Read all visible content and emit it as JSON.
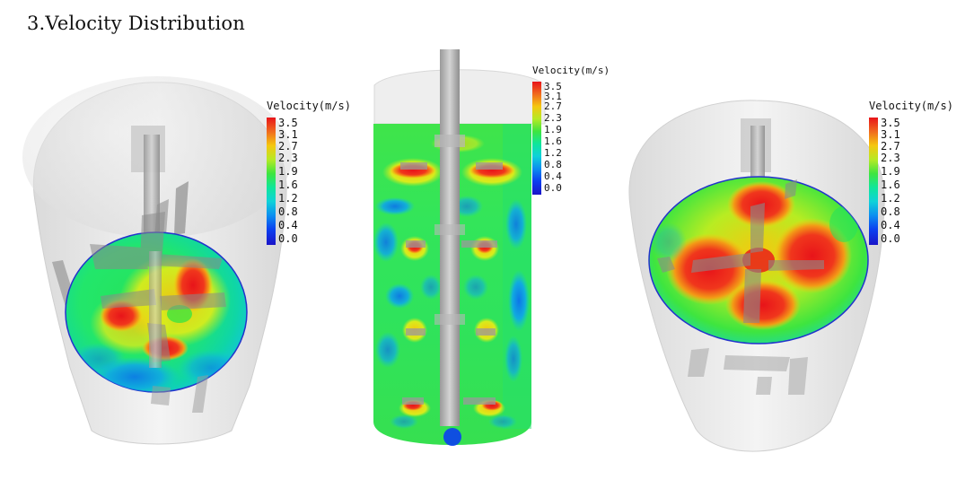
{
  "heading": "3.Velocity  Distribution",
  "legend": {
    "title": "Velocity(m/s)",
    "ticks": [
      "3.5",
      "3.1",
      "2.7",
      "2.3",
      "1.9",
      "1.6",
      "1.2",
      "0.8",
      "0.4",
      "0.0"
    ]
  }
}
